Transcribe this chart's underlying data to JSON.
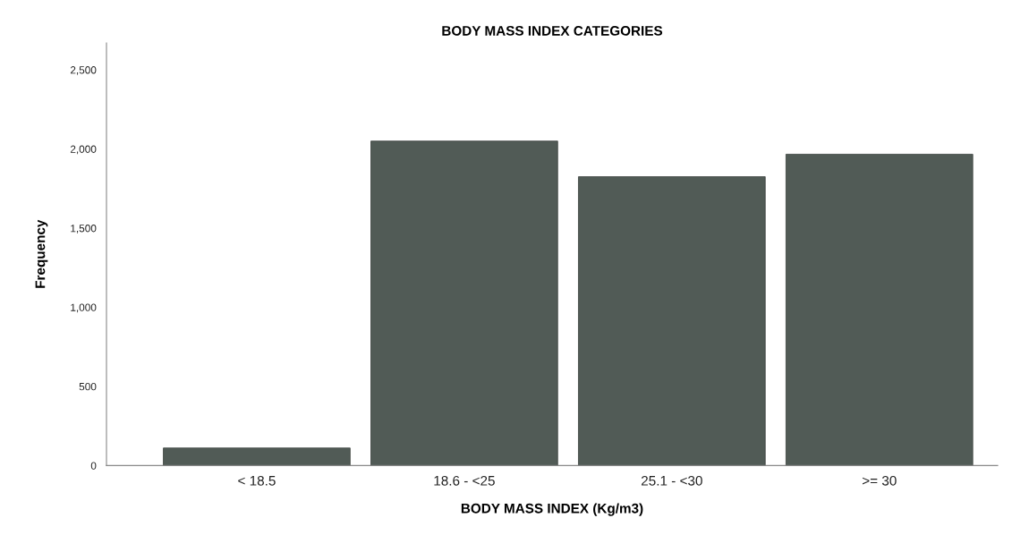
{
  "chart_data": {
    "type": "bar",
    "title": "BODY MASS INDEX CATEGORIES",
    "xlabel": "BODY MASS INDEX (Kg/m3)",
    "ylabel": "Frequency",
    "categories": [
      "< 18.5",
      "18.6 - <25",
      "25.1 - <30",
      ">= 30"
    ],
    "values": [
      111,
      2050,
      1825,
      1967
    ],
    "color": "#515b56",
    "ylim": [
      0,
      2670
    ],
    "yticks": [
      {
        "value": 0,
        "label": "0"
      },
      {
        "value": 500,
        "label": "500"
      },
      {
        "value": 1000,
        "label": "1,000"
      },
      {
        "value": 1500,
        "label": "1,500"
      },
      {
        "value": 2000,
        "label": "2,000"
      },
      {
        "value": 2500,
        "label": "2,500"
      }
    ],
    "grid": false
  }
}
